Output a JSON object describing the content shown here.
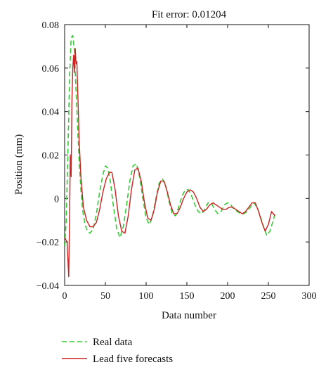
{
  "chart_data": {
    "type": "line",
    "title": "Fit error: 0.01204",
    "xlabel": "Data number",
    "ylabel": "Position (mm)",
    "xlim": [
      0,
      300
    ],
    "ylim": [
      -0.04,
      0.08
    ],
    "x_ticks": [
      0,
      50,
      100,
      150,
      200,
      250,
      300
    ],
    "y_ticks": [
      -0.04,
      -0.02,
      0,
      0.02,
      0.04,
      0.06,
      0.08
    ],
    "x_tick_labels": [
      "0",
      "50",
      "100",
      "150",
      "200",
      "250",
      "300"
    ],
    "y_tick_labels": [
      "−0.04",
      "−0.02",
      "0",
      "0.02",
      "0.04",
      "0.06",
      "0.08"
    ],
    "grid": false,
    "legend_position": "bottom-left, below plot",
    "series": [
      {
        "name": "Real data",
        "color": "#33cc33",
        "style": "dashed",
        "x": [
          0,
          2,
          4,
          6,
          8,
          10,
          12,
          14,
          16,
          18,
          20,
          22,
          25,
          28,
          31,
          35,
          39,
          43,
          47,
          50,
          53,
          56,
          60,
          64,
          68,
          72,
          76,
          80,
          84,
          88,
          92,
          96,
          100,
          104,
          108,
          112,
          116,
          120,
          124,
          128,
          132,
          136,
          140,
          144,
          148,
          152,
          156,
          160,
          164,
          168,
          172,
          176,
          180,
          184,
          188,
          192,
          196,
          200,
          204,
          208,
          212,
          216,
          220,
          224,
          228,
          232,
          236,
          240,
          244,
          248,
          252,
          256,
          259
        ],
        "y": [
          -0.022,
          -0.01,
          0.02,
          0.055,
          0.074,
          0.075,
          0.068,
          0.05,
          0.032,
          0.016,
          0.004,
          -0.005,
          -0.012,
          -0.015,
          -0.016,
          -0.014,
          -0.007,
          0.003,
          0.011,
          0.015,
          0.014,
          0.008,
          -0.004,
          -0.014,
          -0.018,
          -0.013,
          -0.003,
          0.008,
          0.015,
          0.016,
          0.01,
          0.0,
          -0.009,
          -0.012,
          -0.008,
          0.0,
          0.007,
          0.009,
          0.006,
          -0.001,
          -0.007,
          -0.008,
          -0.004,
          0.001,
          0.004,
          0.004,
          0.001,
          -0.003,
          -0.006,
          -0.007,
          -0.005,
          -0.002,
          -0.002,
          -0.005,
          -0.007,
          -0.006,
          -0.003,
          -0.002,
          -0.003,
          -0.005,
          -0.006,
          -0.007,
          -0.007,
          -0.006,
          -0.004,
          -0.002,
          -0.004,
          -0.008,
          -0.013,
          -0.017,
          -0.015,
          -0.01,
          -0.006
        ]
      },
      {
        "name": "Lead five forecasts",
        "color": "#cc2222",
        "style": "solid",
        "x": [
          0,
          3,
          5,
          6,
          7,
          8,
          9,
          10,
          11,
          12,
          13,
          14,
          15,
          16,
          17,
          18,
          20,
          23,
          27,
          31,
          35,
          39,
          43,
          47,
          51,
          55,
          58,
          62,
          66,
          70,
          74,
          78,
          82,
          86,
          90,
          94,
          98,
          102,
          106,
          110,
          114,
          118,
          122,
          126,
          130,
          134,
          138,
          142,
          146,
          150,
          154,
          158,
          162,
          166,
          170,
          174,
          178,
          182,
          186,
          190,
          194,
          198,
          202,
          206,
          210,
          214,
          218,
          222,
          226,
          230,
          234,
          238,
          242,
          246,
          250,
          254,
          258
        ],
        "y": [
          -0.018,
          -0.02,
          -0.036,
          -0.01,
          0.02,
          0.01,
          0.045,
          0.06,
          0.066,
          0.058,
          0.069,
          0.062,
          0.063,
          0.05,
          0.038,
          0.025,
          0.01,
          -0.004,
          -0.01,
          -0.013,
          -0.013,
          -0.011,
          -0.005,
          0.003,
          0.009,
          0.012,
          0.012,
          0.004,
          -0.008,
          -0.015,
          -0.016,
          -0.008,
          0.004,
          0.013,
          0.014,
          0.008,
          -0.002,
          -0.009,
          -0.01,
          -0.005,
          0.003,
          0.008,
          0.008,
          0.003,
          -0.003,
          -0.007,
          -0.007,
          -0.004,
          0.0,
          0.003,
          0.004,
          0.003,
          0.0,
          -0.004,
          -0.006,
          -0.005,
          -0.003,
          -0.002,
          -0.003,
          -0.004,
          -0.005,
          -0.005,
          -0.004,
          -0.004,
          -0.005,
          -0.006,
          -0.007,
          -0.006,
          -0.004,
          -0.002,
          -0.002,
          -0.006,
          -0.011,
          -0.015,
          -0.012,
          -0.006,
          -0.008
        ]
      }
    ]
  }
}
